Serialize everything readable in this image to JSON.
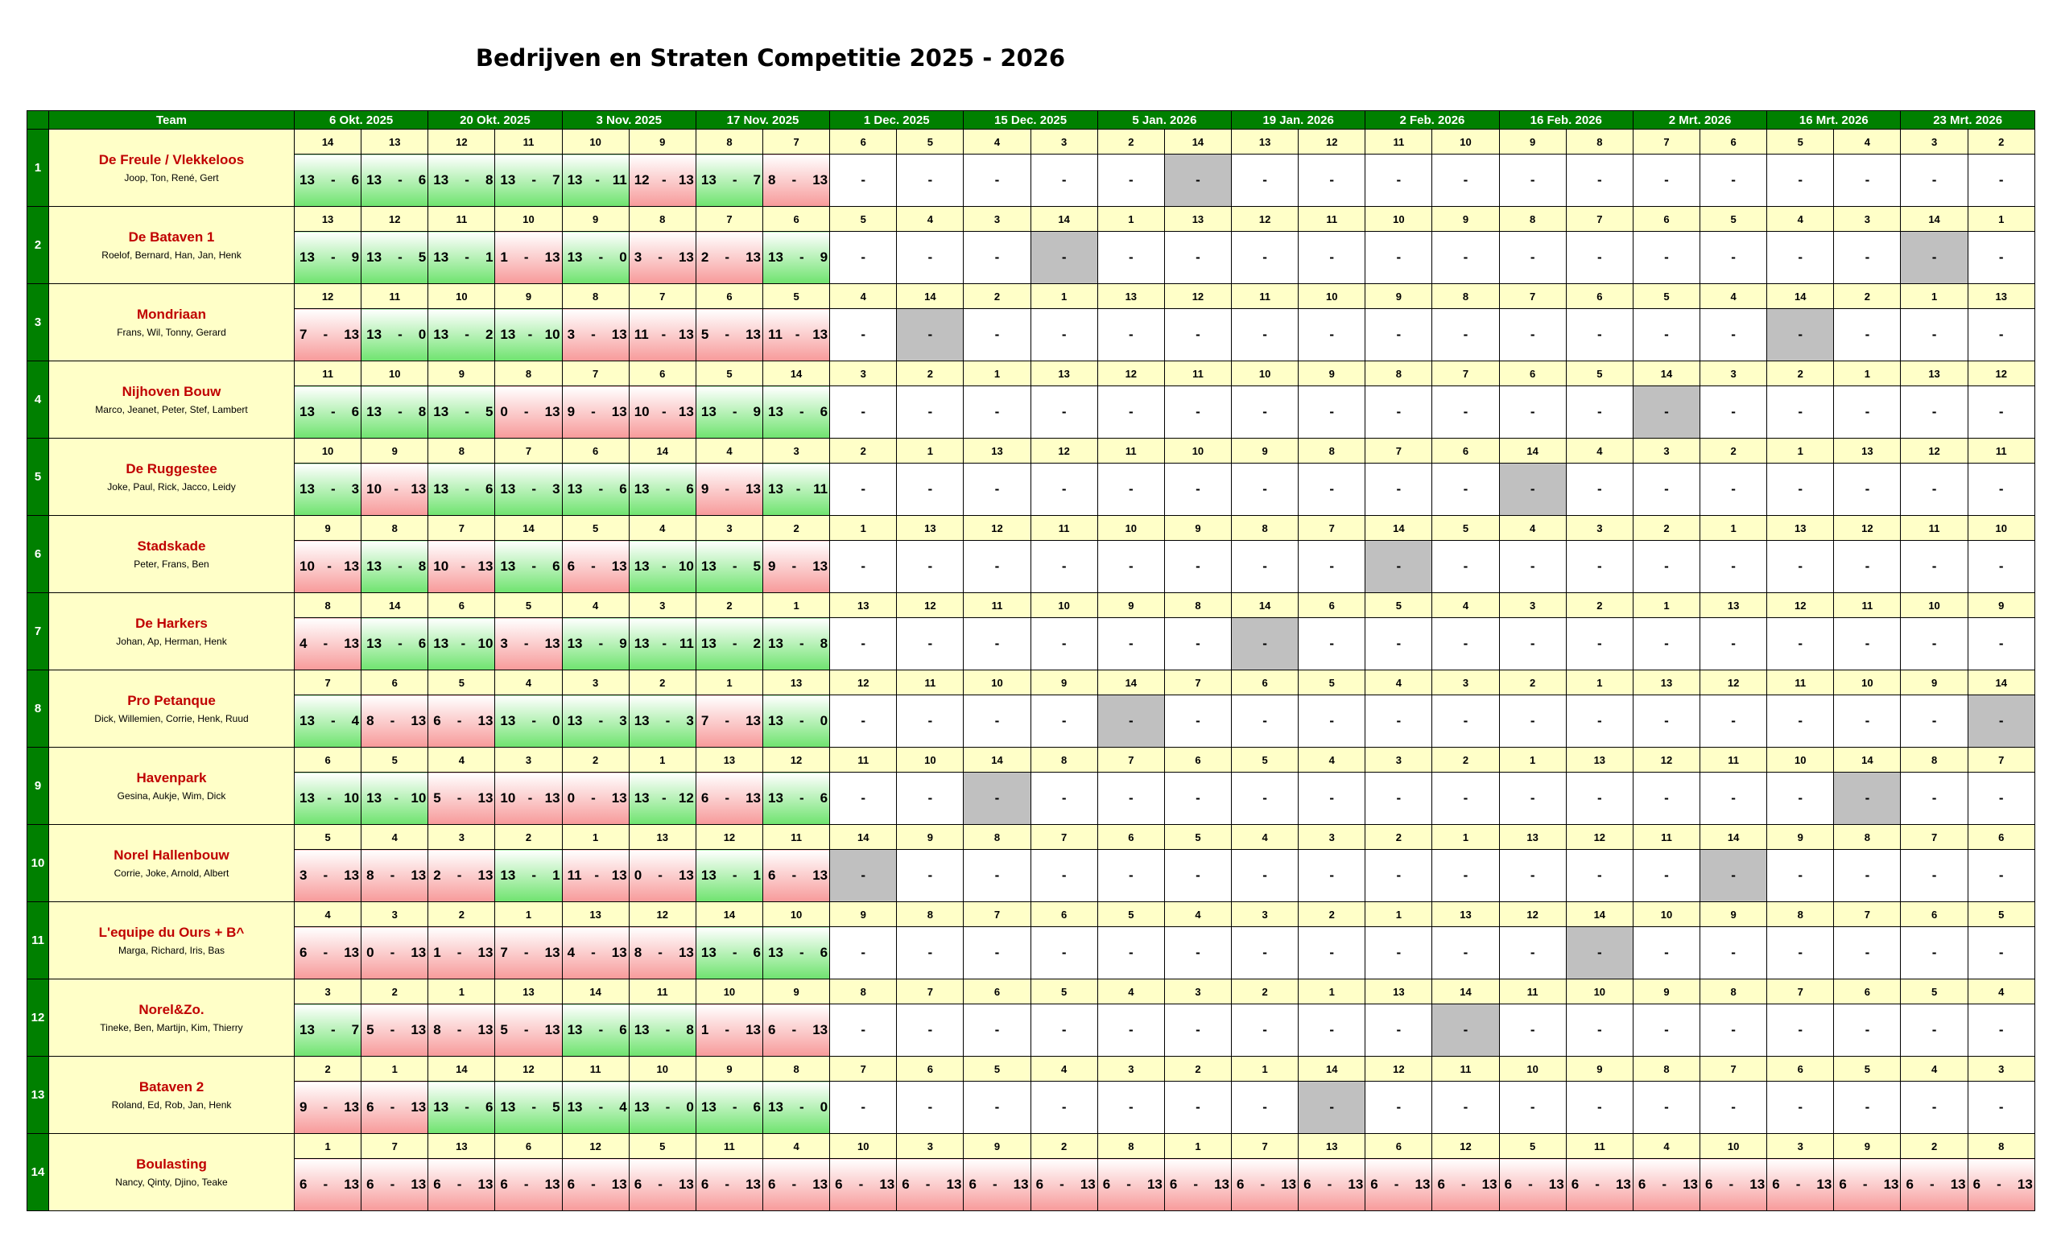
{
  "title": "Bedrijven en Straten Competitie 2025 - 2026",
  "header": {
    "team_label": "Team",
    "dates": [
      "6 Okt. 2025",
      "20 Okt. 2025",
      "3 Nov. 2025",
      "17 Nov. 2025",
      "1 Dec. 2025",
      "15 Dec. 2025",
      "5 Jan. 2026",
      "19 Jan. 2026",
      "2 Feb. 2026",
      "16 Feb. 2026",
      "2 Mrt. 2026",
      "16 Mrt. 2026",
      "23 Mrt. 2026"
    ]
  },
  "colors": {
    "header_green": "#008000",
    "team_bg": "#ffffc8",
    "team_name": "#c00000",
    "win": "#6fe36f",
    "loss": "#f79a9a",
    "bye": "#c0c0c0"
  },
  "teams": [
    {
      "num": "1",
      "name": "De Freule / Vlekkeloos",
      "players": "Joop, Ton, René, Gert",
      "opp": [
        "14",
        "13",
        "12",
        "11",
        "10",
        "9",
        "8",
        "7",
        "6",
        "5",
        "4",
        "3",
        "2",
        "14",
        "13",
        "12",
        "11",
        "10",
        "9",
        "8",
        "7",
        "6",
        "5",
        "4",
        "3",
        "2"
      ],
      "res": [
        [
          "13",
          "6"
        ],
        [
          "13",
          "6"
        ],
        [
          "13",
          "8"
        ],
        [
          "13",
          "7"
        ],
        [
          "13",
          "11"
        ],
        [
          "12",
          "13"
        ],
        [
          "13",
          "7"
        ],
        [
          "8",
          "13"
        ],
        null,
        null,
        null,
        null,
        null,
        "bye",
        null,
        null,
        null,
        null,
        null,
        null,
        null,
        null,
        null,
        null,
        null,
        null
      ]
    },
    {
      "num": "2",
      "name": "De Bataven 1",
      "players": "Roelof, Bernard, Han, Jan, Henk",
      "opp": [
        "13",
        "12",
        "11",
        "10",
        "9",
        "8",
        "7",
        "6",
        "5",
        "4",
        "3",
        "14",
        "1",
        "13",
        "12",
        "11",
        "10",
        "9",
        "8",
        "7",
        "6",
        "5",
        "4",
        "3",
        "14",
        "1"
      ],
      "res": [
        [
          "13",
          "9"
        ],
        [
          "13",
          "5"
        ],
        [
          "13",
          "1"
        ],
        [
          "1",
          "13"
        ],
        [
          "13",
          "0"
        ],
        [
          "3",
          "13"
        ],
        [
          "2",
          "13"
        ],
        [
          "13",
          "9"
        ],
        null,
        null,
        null,
        "bye",
        null,
        null,
        null,
        null,
        null,
        null,
        null,
        null,
        null,
        null,
        null,
        null,
        "bye",
        null
      ]
    },
    {
      "num": "3",
      "name": "Mondriaan",
      "players": "Frans, Wil, Tonny, Gerard",
      "opp": [
        "12",
        "11",
        "10",
        "9",
        "8",
        "7",
        "6",
        "5",
        "4",
        "14",
        "2",
        "1",
        "13",
        "12",
        "11",
        "10",
        "9",
        "8",
        "7",
        "6",
        "5",
        "4",
        "14",
        "2",
        "1",
        "13"
      ],
      "res": [
        [
          "7",
          "13"
        ],
        [
          "13",
          "0"
        ],
        [
          "13",
          "2"
        ],
        [
          "13",
          "10"
        ],
        [
          "3",
          "13"
        ],
        [
          "11",
          "13"
        ],
        [
          "5",
          "13"
        ],
        [
          "11",
          "13"
        ],
        null,
        "bye",
        null,
        null,
        null,
        null,
        null,
        null,
        null,
        null,
        null,
        null,
        null,
        null,
        "bye",
        null,
        null,
        null
      ]
    },
    {
      "num": "4",
      "name": "Nijhoven Bouw",
      "players": "Marco, Jeanet, Peter, Stef, Lambert",
      "opp": [
        "11",
        "10",
        "9",
        "8",
        "7",
        "6",
        "5",
        "14",
        "3",
        "2",
        "1",
        "13",
        "12",
        "11",
        "10",
        "9",
        "8",
        "7",
        "6",
        "5",
        "14",
        "3",
        "2",
        "1",
        "13",
        "12"
      ],
      "res": [
        [
          "13",
          "6"
        ],
        [
          "13",
          "8"
        ],
        [
          "13",
          "5"
        ],
        [
          "0",
          "13"
        ],
        [
          "9",
          "13"
        ],
        [
          "10",
          "13"
        ],
        [
          "13",
          "9"
        ],
        [
          "13",
          "6"
        ],
        null,
        null,
        null,
        null,
        null,
        null,
        null,
        null,
        null,
        null,
        null,
        null,
        "bye",
        null,
        null,
        null,
        null,
        null
      ]
    },
    {
      "num": "5",
      "name": "De Ruggestee",
      "players": "Joke, Paul, Rick, Jacco, Leidy",
      "opp": [
        "10",
        "9",
        "8",
        "7",
        "6",
        "14",
        "4",
        "3",
        "2",
        "1",
        "13",
        "12",
        "11",
        "10",
        "9",
        "8",
        "7",
        "6",
        "14",
        "4",
        "3",
        "2",
        "1",
        "13",
        "12",
        "11"
      ],
      "res": [
        [
          "13",
          "3"
        ],
        [
          "10",
          "13"
        ],
        [
          "13",
          "6"
        ],
        [
          "13",
          "3"
        ],
        [
          "13",
          "6"
        ],
        [
          "13",
          "6"
        ],
        [
          "9",
          "13"
        ],
        [
          "13",
          "11"
        ],
        null,
        null,
        null,
        null,
        null,
        null,
        null,
        null,
        null,
        null,
        "bye",
        null,
        null,
        null,
        null,
        null,
        null,
        null
      ]
    },
    {
      "num": "6",
      "name": "Stadskade",
      "players": "Peter, Frans, Ben",
      "opp": [
        "9",
        "8",
        "7",
        "14",
        "5",
        "4",
        "3",
        "2",
        "1",
        "13",
        "12",
        "11",
        "10",
        "9",
        "8",
        "7",
        "14",
        "5",
        "4",
        "3",
        "2",
        "1",
        "13",
        "12",
        "11",
        "10"
      ],
      "res": [
        [
          "10",
          "13"
        ],
        [
          "13",
          "8"
        ],
        [
          "10",
          "13"
        ],
        [
          "13",
          "6"
        ],
        [
          "6",
          "13"
        ],
        [
          "13",
          "10"
        ],
        [
          "13",
          "5"
        ],
        [
          "9",
          "13"
        ],
        null,
        null,
        null,
        null,
        null,
        null,
        null,
        null,
        "bye",
        null,
        null,
        null,
        null,
        null,
        null,
        null,
        null,
        null
      ]
    },
    {
      "num": "7",
      "name": "De Harkers",
      "players": "Johan, Ap, Herman, Henk",
      "opp": [
        "8",
        "14",
        "6",
        "5",
        "4",
        "3",
        "2",
        "1",
        "13",
        "12",
        "11",
        "10",
        "9",
        "8",
        "14",
        "6",
        "5",
        "4",
        "3",
        "2",
        "1",
        "13",
        "12",
        "11",
        "10",
        "9"
      ],
      "res": [
        [
          "4",
          "13"
        ],
        [
          "13",
          "6"
        ],
        [
          "13",
          "10"
        ],
        [
          "3",
          "13"
        ],
        [
          "13",
          "9"
        ],
        [
          "13",
          "11"
        ],
        [
          "13",
          "2"
        ],
        [
          "13",
          "8"
        ],
        null,
        null,
        null,
        null,
        null,
        null,
        "bye",
        null,
        null,
        null,
        null,
        null,
        null,
        null,
        null,
        null,
        null,
        null
      ]
    },
    {
      "num": "8",
      "name": "Pro Petanque",
      "players": "Dick, Willemien, Corrie, Henk, Ruud",
      "opp": [
        "7",
        "6",
        "5",
        "4",
        "3",
        "2",
        "1",
        "13",
        "12",
        "11",
        "10",
        "9",
        "14",
        "7",
        "6",
        "5",
        "4",
        "3",
        "2",
        "1",
        "13",
        "12",
        "11",
        "10",
        "9",
        "14"
      ],
      "res": [
        [
          "13",
          "4"
        ],
        [
          "8",
          "13"
        ],
        [
          "6",
          "13"
        ],
        [
          "13",
          "0"
        ],
        [
          "13",
          "3"
        ],
        [
          "13",
          "3"
        ],
        [
          "7",
          "13"
        ],
        [
          "13",
          "0"
        ],
        null,
        null,
        null,
        null,
        "bye",
        null,
        null,
        null,
        null,
        null,
        null,
        null,
        null,
        null,
        null,
        null,
        null,
        "bye"
      ]
    },
    {
      "num": "9",
      "name": "Havenpark",
      "players": "Gesina, Aukje, Wim, Dick",
      "opp": [
        "6",
        "5",
        "4",
        "3",
        "2",
        "1",
        "13",
        "12",
        "11",
        "10",
        "14",
        "8",
        "7",
        "6",
        "5",
        "4",
        "3",
        "2",
        "1",
        "13",
        "12",
        "11",
        "10",
        "14",
        "8",
        "7"
      ],
      "res": [
        [
          "13",
          "10"
        ],
        [
          "13",
          "10"
        ],
        [
          "5",
          "13"
        ],
        [
          "10",
          "13"
        ],
        [
          "0",
          "13"
        ],
        [
          "13",
          "12"
        ],
        [
          "6",
          "13"
        ],
        [
          "13",
          "6"
        ],
        null,
        null,
        "bye",
        null,
        null,
        null,
        null,
        null,
        null,
        null,
        null,
        null,
        null,
        null,
        null,
        "bye",
        null,
        null
      ]
    },
    {
      "num": "10",
      "name": "Norel Hallenbouw",
      "players": "Corrie, Joke, Arnold, Albert",
      "opp": [
        "5",
        "4",
        "3",
        "2",
        "1",
        "13",
        "12",
        "11",
        "14",
        "9",
        "8",
        "7",
        "6",
        "5",
        "4",
        "3",
        "2",
        "1",
        "13",
        "12",
        "11",
        "14",
        "9",
        "8",
        "7",
        "6"
      ],
      "res": [
        [
          "3",
          "13"
        ],
        [
          "8",
          "13"
        ],
        [
          "2",
          "13"
        ],
        [
          "13",
          "1"
        ],
        [
          "11",
          "13"
        ],
        [
          "0",
          "13"
        ],
        [
          "13",
          "1"
        ],
        [
          "6",
          "13"
        ],
        "bye",
        null,
        null,
        null,
        null,
        null,
        null,
        null,
        null,
        null,
        null,
        null,
        null,
        "bye",
        null,
        null,
        null,
        null
      ]
    },
    {
      "num": "11",
      "name": "L'equipe du Ours  + B^",
      "players": "Marga, Richard, Iris, Bas",
      "opp": [
        "4",
        "3",
        "2",
        "1",
        "13",
        "12",
        "14",
        "10",
        "9",
        "8",
        "7",
        "6",
        "5",
        "4",
        "3",
        "2",
        "1",
        "13",
        "12",
        "14",
        "10",
        "9",
        "8",
        "7",
        "6",
        "5"
      ],
      "res": [
        [
          "6",
          "13"
        ],
        [
          "0",
          "13"
        ],
        [
          "1",
          "13"
        ],
        [
          "7",
          "13"
        ],
        [
          "4",
          "13"
        ],
        [
          "8",
          "13"
        ],
        [
          "13",
          "6"
        ],
        [
          "13",
          "6"
        ],
        null,
        null,
        null,
        null,
        null,
        null,
        null,
        null,
        null,
        null,
        null,
        "bye",
        null,
        null,
        null,
        null,
        null,
        null
      ]
    },
    {
      "num": "12",
      "name": "Norel&Zo.",
      "players": "Tineke, Ben, Martijn, Kim, Thierry",
      "opp": [
        "3",
        "2",
        "1",
        "13",
        "14",
        "11",
        "10",
        "9",
        "8",
        "7",
        "6",
        "5",
        "4",
        "3",
        "2",
        "1",
        "13",
        "14",
        "11",
        "10",
        "9",
        "8",
        "7",
        "6",
        "5",
        "4"
      ],
      "res": [
        [
          "13",
          "7"
        ],
        [
          "5",
          "13"
        ],
        [
          "8",
          "13"
        ],
        [
          "5",
          "13"
        ],
        [
          "13",
          "6"
        ],
        [
          "13",
          "8"
        ],
        [
          "1",
          "13"
        ],
        [
          "6",
          "13"
        ],
        null,
        null,
        null,
        null,
        null,
        null,
        null,
        null,
        null,
        "bye",
        null,
        null,
        null,
        null,
        null,
        null,
        null,
        null
      ]
    },
    {
      "num": "13",
      "name": "Bataven 2",
      "players": "Roland, Ed, Rob, Jan, Henk",
      "opp": [
        "2",
        "1",
        "14",
        "12",
        "11",
        "10",
        "9",
        "8",
        "7",
        "6",
        "5",
        "4",
        "3",
        "2",
        "1",
        "14",
        "12",
        "11",
        "10",
        "9",
        "8",
        "7",
        "6",
        "5",
        "4",
        "3"
      ],
      "res": [
        [
          "9",
          "13"
        ],
        [
          "6",
          "13"
        ],
        [
          "13",
          "6"
        ],
        [
          "13",
          "5"
        ],
        [
          "13",
          "4"
        ],
        [
          "13",
          "0"
        ],
        [
          "13",
          "6"
        ],
        [
          "13",
          "0"
        ],
        null,
        null,
        null,
        null,
        null,
        null,
        null,
        "bye",
        null,
        null,
        null,
        null,
        null,
        null,
        null,
        null,
        null,
        null
      ]
    },
    {
      "num": "14",
      "name": "Boulasting",
      "players": "Nancy, Qinty, Djino, Teake",
      "opp": [
        "1",
        "7",
        "13",
        "6",
        "12",
        "5",
        "11",
        "4",
        "10",
        "3",
        "9",
        "2",
        "8",
        "1",
        "7",
        "13",
        "6",
        "12",
        "5",
        "11",
        "4",
        "10",
        "3",
        "9",
        "2",
        "8"
      ],
      "res": [
        [
          "6",
          "13"
        ],
        [
          "6",
          "13"
        ],
        [
          "6",
          "13"
        ],
        [
          "6",
          "13"
        ],
        [
          "6",
          "13"
        ],
        [
          "6",
          "13"
        ],
        [
          "6",
          "13"
        ],
        [
          "6",
          "13"
        ],
        [
          "6",
          "13"
        ],
        [
          "6",
          "13"
        ],
        [
          "6",
          "13"
        ],
        [
          "6",
          "13"
        ],
        [
          "6",
          "13"
        ],
        [
          "6",
          "13"
        ],
        [
          "6",
          "13"
        ],
        [
          "6",
          "13"
        ],
        [
          "6",
          "13"
        ],
        [
          "6",
          "13"
        ],
        [
          "6",
          "13"
        ],
        [
          "6",
          "13"
        ],
        [
          "6",
          "13"
        ],
        [
          "6",
          "13"
        ],
        [
          "6",
          "13"
        ],
        [
          "6",
          "13"
        ],
        [
          "6",
          "13"
        ],
        [
          "6",
          "13"
        ]
      ]
    }
  ]
}
